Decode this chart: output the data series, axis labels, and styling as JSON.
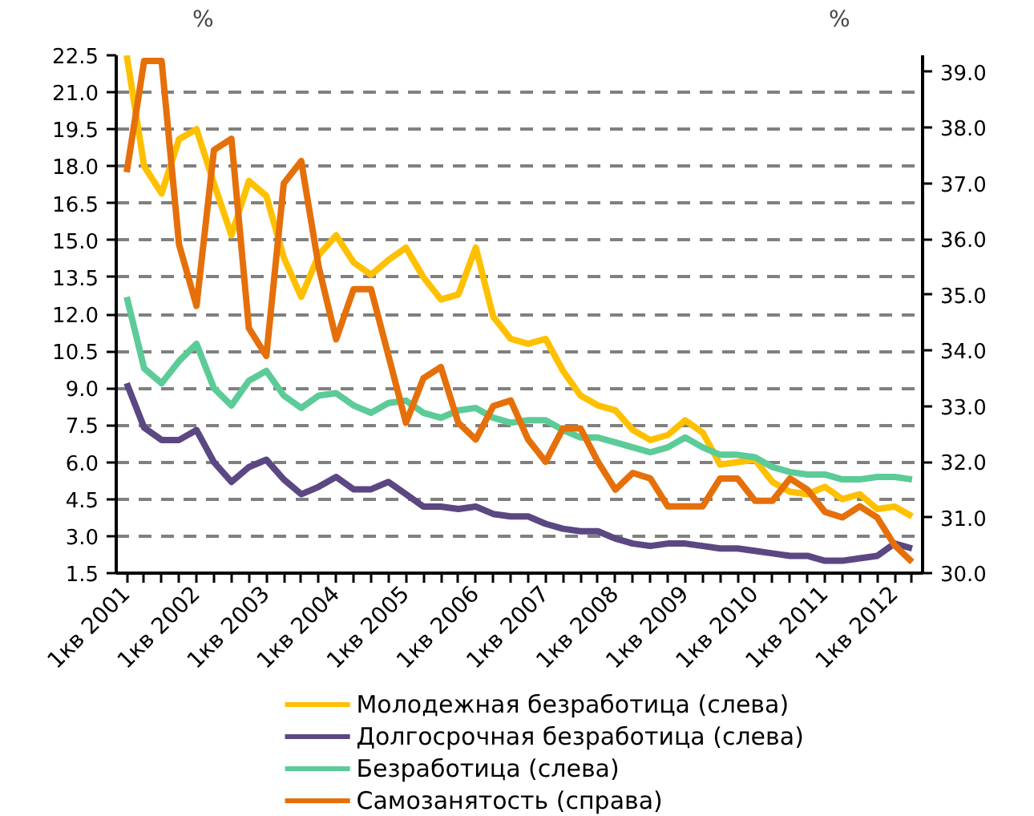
{
  "chart_data": {
    "type": "line",
    "ylabel": "%",
    "y2label": "%",
    "categories": [
      "1кв 2001",
      null,
      null,
      null,
      "1кв 2002",
      null,
      null,
      null,
      "1кв 2003",
      null,
      null,
      null,
      "1кв 2004",
      null,
      null,
      null,
      "1кв 2005",
      null,
      null,
      null,
      "1кв 2006",
      null,
      null,
      null,
      "1кв 2007",
      null,
      null,
      null,
      "1кв 2008",
      null,
      null,
      null,
      "1кв 2009",
      null,
      null,
      null,
      "1кв 2010",
      null,
      null,
      null,
      "1кв 2011",
      null,
      null,
      null,
      "1кв 2012",
      null
    ],
    "series": [
      {
        "name": "Молодежная безработица (слева)",
        "color": "#ffc000",
        "values": [
          22.5,
          18.0,
          16.9,
          19.1,
          19.5,
          17.3,
          15.2,
          17.4,
          16.8,
          14.3,
          12.7,
          14.4,
          15.2,
          14.1,
          13.6,
          14.2,
          14.7,
          13.5,
          12.6,
          12.8,
          14.7,
          11.9,
          11.0,
          10.8,
          11.0,
          9.7,
          8.7,
          8.3,
          8.1,
          7.3,
          6.9,
          7.1,
          7.7,
          7.2,
          5.9,
          6.0,
          6.1,
          5.2,
          4.8,
          4.7,
          5.0,
          4.5,
          4.7,
          4.1,
          4.2,
          3.8
        ]
      },
      {
        "name": "Долгосрочная безработица (слева)",
        "color": "#5b4782",
        "values": [
          9.2,
          7.4,
          6.9,
          6.9,
          7.3,
          6.0,
          5.2,
          5.8,
          6.1,
          5.3,
          4.7,
          5.0,
          5.4,
          4.9,
          4.9,
          5.2,
          4.7,
          4.2,
          4.2,
          4.1,
          4.2,
          3.9,
          3.8,
          3.8,
          3.5,
          3.3,
          3.2,
          3.2,
          2.9,
          2.7,
          2.6,
          2.7,
          2.7,
          2.6,
          2.5,
          2.5,
          2.4,
          2.3,
          2.2,
          2.2,
          2.0,
          2.0,
          2.1,
          2.2,
          2.7,
          2.5
        ]
      },
      {
        "name": "Безработица (слева)",
        "color": "#5ccb98",
        "values": [
          12.7,
          9.8,
          9.2,
          10.1,
          10.8,
          9.0,
          8.3,
          9.3,
          9.7,
          8.7,
          8.2,
          8.7,
          8.8,
          8.3,
          8.0,
          8.4,
          8.5,
          8.0,
          7.8,
          8.1,
          8.2,
          7.8,
          7.6,
          7.7,
          7.7,
          7.3,
          7.0,
          7.0,
          6.8,
          6.6,
          6.4,
          6.6,
          7.0,
          6.6,
          6.3,
          6.3,
          6.2,
          5.8,
          5.6,
          5.5,
          5.5,
          5.3,
          5.3,
          5.4,
          5.4,
          5.3
        ]
      },
      {
        "name": "Самозанятость (справа)",
        "color": "#e5700a",
        "axis": "y2",
        "values": [
          37.2,
          39.2,
          39.2,
          35.9,
          34.8,
          37.6,
          37.8,
          34.4,
          33.9,
          37.0,
          37.4,
          35.5,
          34.2,
          35.1,
          35.1,
          33.9,
          32.7,
          33.5,
          33.7,
          32.7,
          32.4,
          33.0,
          33.1,
          32.4,
          32.0,
          32.6,
          32.6,
          32.0,
          31.5,
          31.8,
          31.7,
          31.2,
          31.2,
          31.2,
          31.7,
          31.7,
          31.3,
          31.3,
          31.7,
          31.5,
          31.1,
          31.0,
          31.2,
          31.0,
          30.5,
          30.2
        ]
      }
    ],
    "ylim": [
      1.5,
      22.5
    ],
    "yticks": [
      1.5,
      {
        "value": 3,
        "label": "3.0"
      },
      4.5,
      {
        "value": 6,
        "label": "6.0"
      },
      7.5,
      {
        "value": 9,
        "label": "9.0"
      },
      10.5,
      {
        "value": 12,
        "label": "12.0"
      },
      13.5,
      {
        "value": 15,
        "label": "15.0"
      },
      16.5,
      {
        "value": 18,
        "label": "18.0"
      },
      19.5,
      {
        "value": 21,
        "label": "21.0"
      },
      22.5
    ],
    "y2lim": [
      30,
      39.3
    ],
    "y2ticks": [
      {
        "value": 30,
        "label": "30.0"
      },
      {
        "value": 31,
        "label": "31.0"
      },
      {
        "value": 32,
        "label": "32.0"
      },
      {
        "value": 33,
        "label": "33.0"
      },
      {
        "value": 34,
        "label": "34.0"
      },
      {
        "value": 35,
        "label": "35.0"
      },
      {
        "value": 36,
        "label": "36.0"
      },
      {
        "value": 37,
        "label": "37.0"
      },
      {
        "value": 38,
        "label": "38.0"
      },
      {
        "value": 39,
        "label": "39.0"
      }
    ],
    "grid": "y",
    "legend": "bottom",
    "line_style": "solid"
  }
}
